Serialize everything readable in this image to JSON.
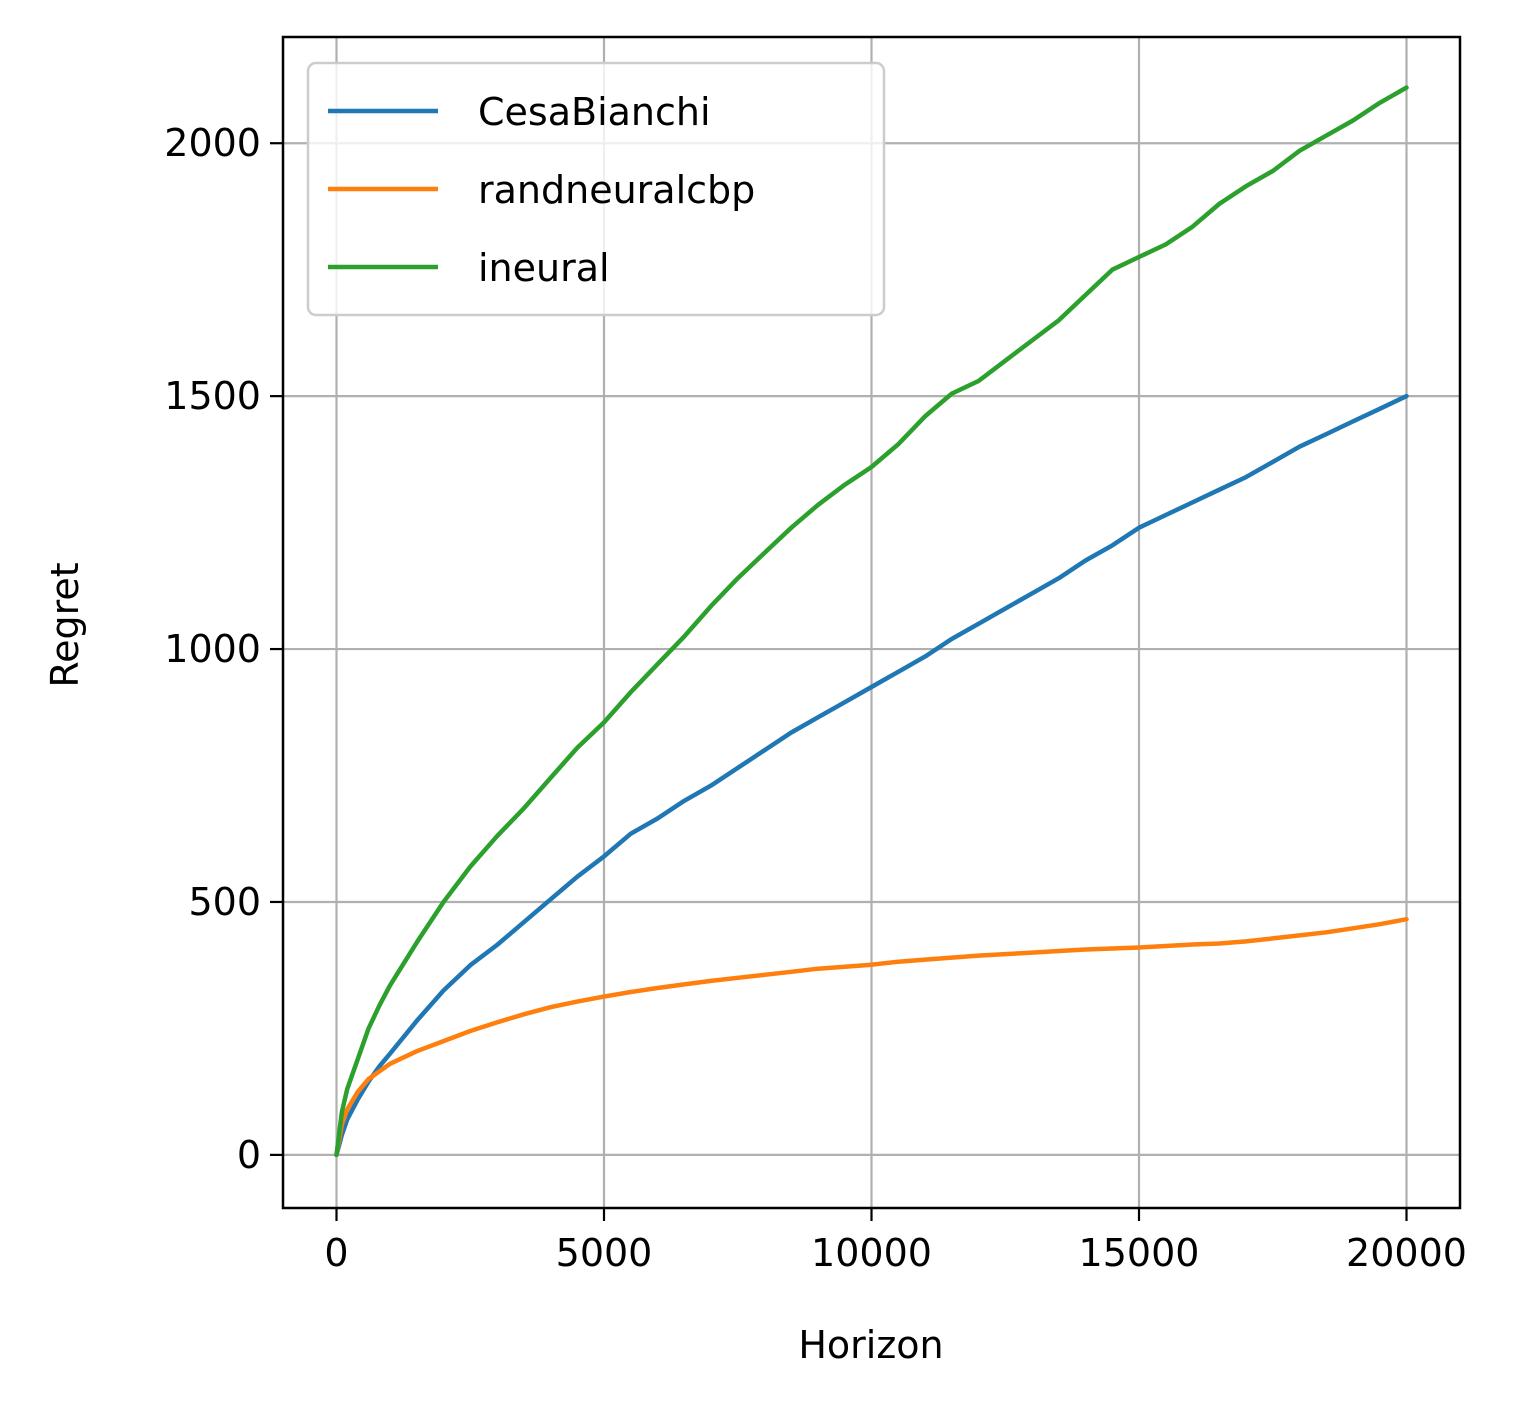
{
  "chart_data": {
    "type": "line",
    "xlabel": "Horizon",
    "ylabel": "Regret",
    "xlim": [
      -1000,
      21000
    ],
    "ylim": [
      -105,
      2210
    ],
    "xticks": [
      0,
      5000,
      10000,
      15000,
      20000
    ],
    "yticks": [
      0,
      500,
      1000,
      1500,
      2000
    ],
    "grid": true,
    "legend": "top-left",
    "x": [
      0,
      100,
      200,
      400,
      600,
      800,
      1000,
      1500,
      2000,
      2500,
      3000,
      3500,
      4000,
      4500,
      5000,
      5500,
      6000,
      6500,
      7000,
      7500,
      8000,
      8500,
      9000,
      9500,
      10000,
      10500,
      11000,
      11500,
      12000,
      12500,
      13000,
      13500,
      14000,
      14500,
      15000,
      15500,
      16000,
      16500,
      17000,
      17500,
      18000,
      18500,
      19000,
      19500,
      20000
    ],
    "series": [
      {
        "name": "CesaBianchi",
        "color": "#1f77b4",
        "values": [
          0,
          40,
          70,
          110,
          145,
          175,
          200,
          265,
          325,
          375,
          415,
          460,
          505,
          550,
          590,
          635,
          665,
          700,
          730,
          765,
          800,
          835,
          865,
          895,
          925,
          955,
          985,
          1020,
          1050,
          1080,
          1110,
          1140,
          1175,
          1205,
          1240,
          1265,
          1290,
          1315,
          1340,
          1370,
          1400,
          1425,
          1450,
          1475,
          1500
        ]
      },
      {
        "name": "randneuralcbp",
        "color": "#ff7f0e",
        "values": [
          0,
          60,
          90,
          125,
          150,
          165,
          180,
          205,
          225,
          245,
          262,
          278,
          292,
          303,
          313,
          322,
          330,
          337,
          344,
          350,
          356,
          362,
          368,
          372,
          376,
          382,
          386,
          390,
          394,
          397,
          400,
          403,
          406,
          408,
          410,
          413,
          416,
          418,
          422,
          428,
          434,
          440,
          448,
          456,
          466
        ]
      },
      {
        "name": "ineural",
        "color": "#2ca02c",
        "values": [
          0,
          85,
          130,
          190,
          250,
          295,
          335,
          420,
          500,
          570,
          630,
          685,
          745,
          805,
          855,
          915,
          970,
          1025,
          1085,
          1140,
          1190,
          1240,
          1285,
          1325,
          1360,
          1405,
          1460,
          1505,
          1530,
          1570,
          1610,
          1650,
          1700,
          1750,
          1775,
          1800,
          1835,
          1880,
          1915,
          1945,
          1985,
          2015,
          2045,
          2080,
          2110
        ]
      }
    ]
  }
}
